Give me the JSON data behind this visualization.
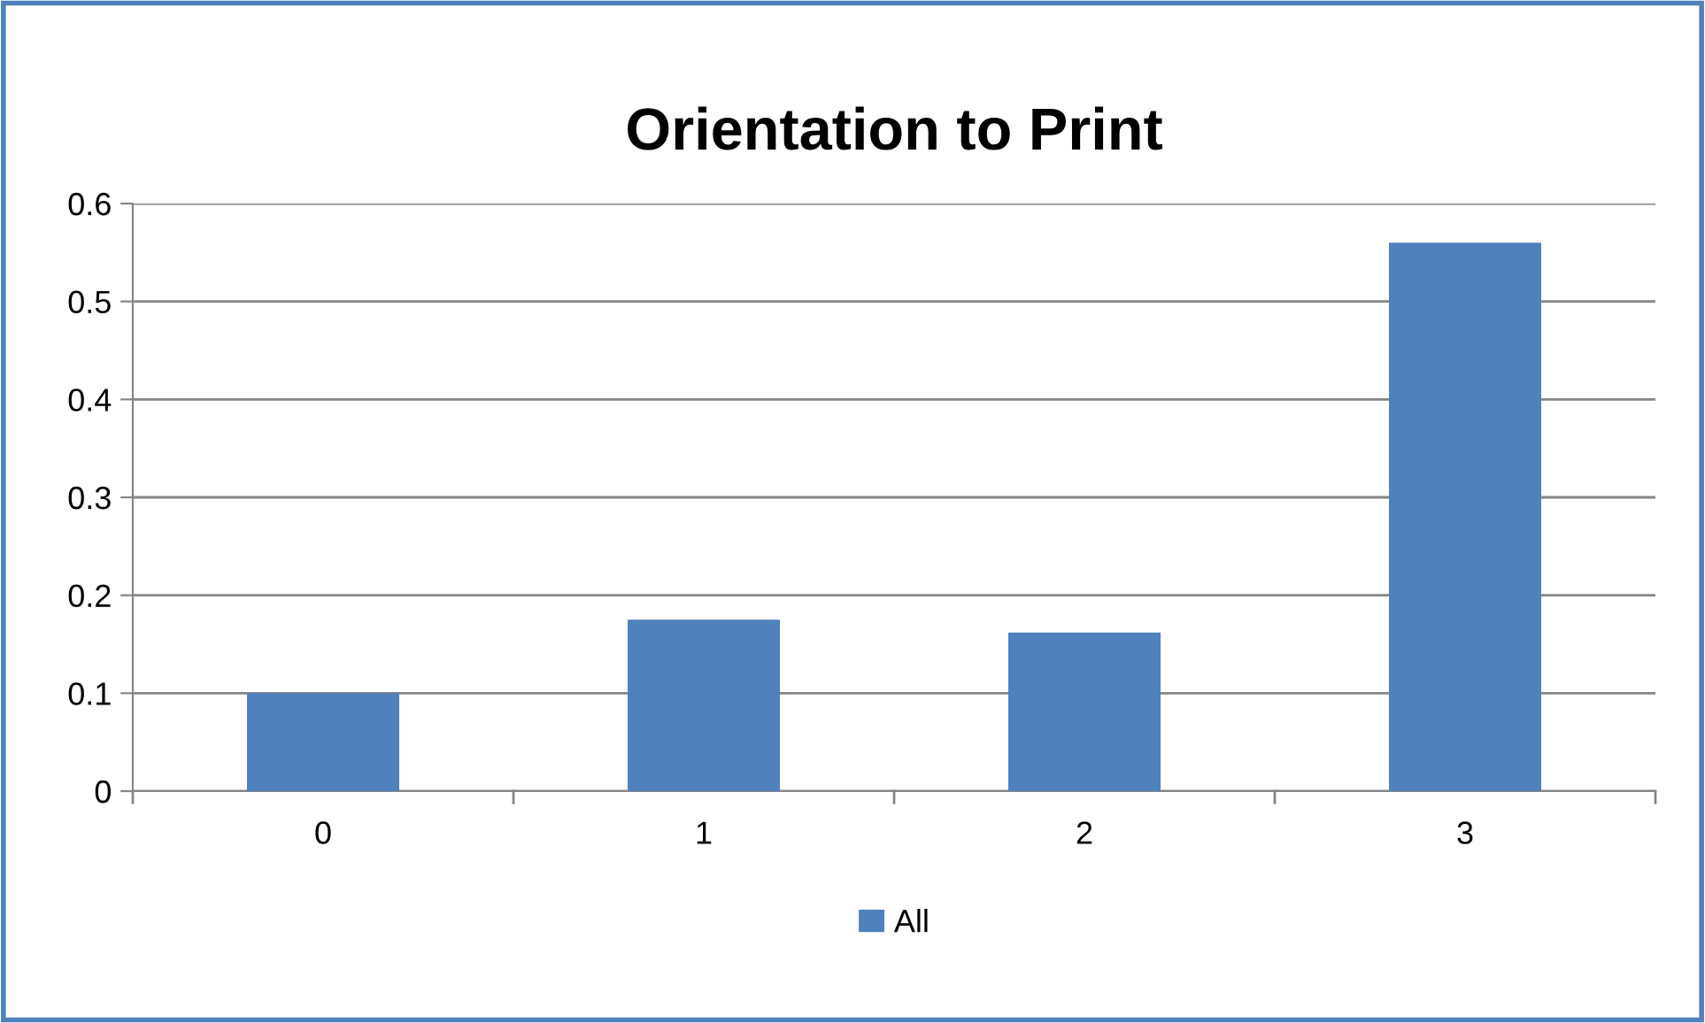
{
  "chart_data": {
    "type": "bar",
    "title": "Orientation to Print",
    "categories": [
      "0",
      "1",
      "2",
      "3"
    ],
    "series": [
      {
        "name": "All",
        "color": "#4f81bd",
        "values": [
          0.1,
          0.175,
          0.162,
          0.56
        ]
      }
    ],
    "ylim": [
      0,
      0.6
    ],
    "yticks": [
      0,
      0.1,
      0.2,
      0.3,
      0.4,
      0.5,
      0.6
    ],
    "grid": "y",
    "legend": "bottom"
  }
}
